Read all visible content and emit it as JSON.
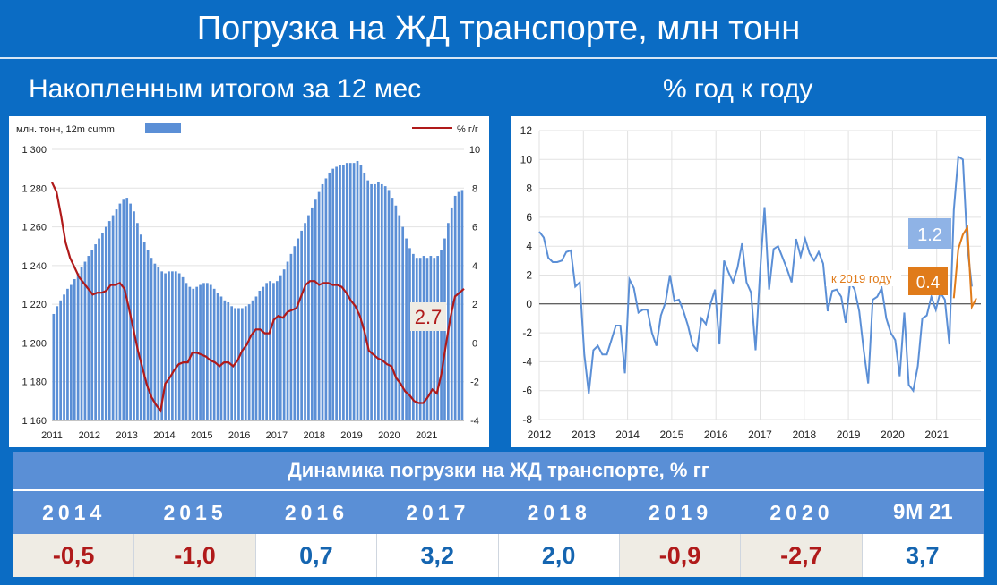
{
  "header": {
    "title": "Погрузка на ЖД транспорте, млн тонн",
    "left_subtitle": "Накопленным итогом за 12 мес",
    "right_subtitle": "% год к году"
  },
  "colors": {
    "background": "#0b6cc4",
    "bar": "#5b8fd6",
    "line_red": "#b01a1a",
    "line_blue": "#5b8fd6",
    "line_orange": "#e07b1a"
  },
  "chart_data": [
    {
      "type": "bar",
      "legend": {
        "bar_label": "млн. тонн, 12m cumm",
        "line_label": "% г/г"
      },
      "y_ticks": [
        "1 160",
        "1 180",
        "1 200",
        "1 220",
        "1 240",
        "1 260",
        "1 280",
        "1 300"
      ],
      "y2_ticks": [
        "-4",
        "-2",
        "0",
        "2",
        "4",
        "6",
        "8",
        "10"
      ],
      "x_ticks": [
        "2011",
        "2012",
        "2013",
        "2014",
        "2015",
        "2016",
        "2017",
        "2018",
        "2019",
        "2020",
        "2021"
      ],
      "ylim": [
        1160,
        1300
      ],
      "y2lim": [
        -4,
        10
      ],
      "annotation": "2.7",
      "series": [
        {
          "values": [
            1215,
            1219,
            1222,
            1225,
            1228,
            1230,
            1233,
            1236,
            1239,
            1242,
            1245,
            1248,
            1251,
            1254,
            1257,
            1260,
            1263,
            1266,
            1269,
            1272,
            1274,
            1275,
            1272,
            1268,
            1262,
            1256,
            1252,
            1248,
            1244,
            1241,
            1239,
            1237,
            1236,
            1237,
            1237,
            1237,
            1236,
            1234,
            1231,
            1229,
            1228,
            1229,
            1230,
            1231,
            1231,
            1230,
            1228,
            1226,
            1224,
            1222,
            1221,
            1219,
            1218,
            1218,
            1218,
            1219,
            1220,
            1222,
            1224,
            1227,
            1229,
            1231,
            1232,
            1231,
            1232,
            1235,
            1238,
            1242,
            1246,
            1250,
            1254,
            1258,
            1262,
            1266,
            1270,
            1274,
            1278,
            1282,
            1285,
            1288,
            1290,
            1291,
            1292,
            1292,
            1293,
            1293,
            1293,
            1294,
            1292,
            1288,
            1284,
            1282,
            1282,
            1283,
            1282,
            1281,
            1279,
            1275,
            1271,
            1266,
            1260,
            1254,
            1249,
            1246,
            1244,
            1244,
            1245,
            1244,
            1245,
            1244,
            1245,
            1248,
            1254,
            1262,
            1270,
            1276,
            1278,
            1279
          ]
        },
        {
          "name": "% г/г",
          "values": [
            8.3,
            7.8,
            6.6,
            5.2,
            4.4,
            3.9,
            3.4,
            3.1,
            2.8,
            2.5,
            2.6,
            2.6,
            2.7,
            3.0,
            3.0,
            3.1,
            2.8,
            1.8,
            0.7,
            -0.4,
            -1.3,
            -2.2,
            -2.8,
            -3.2,
            -3.5,
            -2.1,
            -1.8,
            -1.4,
            -1.1,
            -1.0,
            -1.0,
            -0.5,
            -0.5,
            -0.6,
            -0.7,
            -0.9,
            -1.0,
            -1.2,
            -1.0,
            -1.0,
            -1.2,
            -0.9,
            -0.4,
            -0.1,
            0.4,
            0.7,
            0.7,
            0.5,
            0.5,
            1.2,
            1.4,
            1.3,
            1.6,
            1.7,
            1.8,
            2.4,
            3.0,
            3.2,
            3.2,
            3.0,
            3.1,
            3.1,
            3.0,
            3.0,
            2.9,
            2.6,
            2.2,
            1.9,
            1.4,
            0.6,
            -0.4,
            -0.6,
            -0.8,
            -0.9,
            -1.1,
            -1.2,
            -1.8,
            -2.1,
            -2.5,
            -2.7,
            -3.0,
            -3.1,
            -3.1,
            -2.8,
            -2.4,
            -2.6,
            -1.6,
            -0.1,
            1.3,
            2.4,
            2.6,
            2.8
          ]
        }
      ]
    },
    {
      "type": "line",
      "y_ticks": [
        "-8",
        "-6",
        "-4",
        "-2",
        "0",
        "2",
        "4",
        "6",
        "8",
        "10",
        "12"
      ],
      "x_ticks": [
        "2012",
        "2013",
        "2014",
        "2015",
        "2016",
        "2017",
        "2018",
        "2019",
        "2020",
        "2021"
      ],
      "ylim": [
        -8,
        12
      ],
      "annotations": {
        "value_blue": "1.2",
        "value_orange": "0.4",
        "note_orange": "к 2019 году"
      },
      "series": [
        {
          "values": [
            5.0,
            4.6,
            3.2,
            2.9,
            2.9,
            3.0,
            3.6,
            3.7,
            1.2,
            1.5,
            -3.5,
            -6.2,
            -3.2,
            -2.9,
            -3.5,
            -3.5,
            -2.5,
            -1.5,
            -1.5,
            -4.8,
            1.7,
            1.1,
            -0.6,
            -0.4,
            -0.4,
            -2.0,
            -2.9,
            -0.8,
            0.1,
            2.0,
            0.2,
            0.3,
            -0.5,
            -1.5,
            -2.8,
            -3.2,
            -1.0,
            -1.4,
            0.0,
            1.0,
            -2.8,
            3.0,
            2.2,
            1.5,
            2.5,
            4.2,
            1.5,
            0.8,
            -3.2,
            2.2,
            6.7,
            1.0,
            3.8,
            4.0,
            3.2,
            2.4,
            1.5,
            4.5,
            3.3,
            4.5,
            3.5,
            3.0,
            3.6,
            2.8,
            -0.5,
            0.9,
            1.0,
            0.5,
            -1.3,
            1.5,
            1.0,
            -0.5,
            -3.2,
            -5.5,
            0.3,
            0.5,
            1.1,
            -1.0,
            -2.0,
            -2.5,
            -5.0,
            -0.6,
            -5.6,
            -6.0,
            -4.3,
            -1.0,
            -0.8,
            0.5,
            -0.4,
            0.8,
            0.3,
            -2.8,
            6.5,
            10.2,
            10.0,
            4.0,
            1.2
          ]
        },
        {
          "values": [
            0.4,
            3.8,
            4.8,
            5.3,
            -0.2,
            0.4
          ]
        }
      ]
    }
  ],
  "table": {
    "title": "Динамика погрузки на ЖД транспорте, % гг",
    "years": [
      "2014",
      "2015",
      "2016",
      "2017",
      "2018",
      "2019",
      "2020",
      "9M 21"
    ],
    "values": [
      "-0,5",
      "-1,0",
      "0,7",
      "3,2",
      "2,0",
      "-0,9",
      "-2,7",
      "3,7"
    ]
  }
}
